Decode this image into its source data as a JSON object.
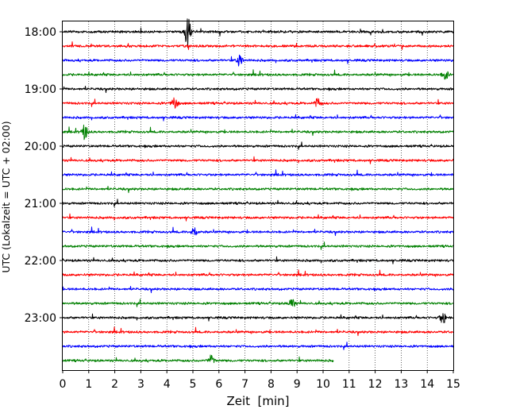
{
  "chart_data": {
    "type": "line",
    "title": "",
    "xlabel": "Zeit  [min]",
    "ylabel": "UTC (Lokalzeit = UTC + 02:00)",
    "xlim": [
      0,
      15
    ],
    "x_ticks": [
      "0",
      "1",
      "2",
      "3",
      "4",
      "5",
      "6",
      "7",
      "8",
      "9",
      "10",
      "11",
      "12",
      "13",
      "14",
      "15"
    ],
    "y_ticks": [
      "18:00",
      "19:00",
      "20:00",
      "21:00",
      "22:00",
      "23:00"
    ],
    "grid": "vertical dotted lines at each minute",
    "row_interval_minutes": 15,
    "rows": [
      {
        "start": "18:00",
        "color": "#000000",
        "end_min": 15,
        "events": [
          {
            "t": 4.8,
            "amp": 1.0
          }
        ]
      },
      {
        "start": "18:15",
        "color": "#ff0000",
        "end_min": 15,
        "events": []
      },
      {
        "start": "18:30",
        "color": "#0000ff",
        "end_min": 15,
        "events": [
          {
            "t": 6.8,
            "amp": 0.35
          }
        ]
      },
      {
        "start": "18:45",
        "color": "#008000",
        "end_min": 15,
        "events": [
          {
            "t": 14.7,
            "amp": 0.3
          }
        ]
      },
      {
        "start": "19:00",
        "color": "#000000",
        "end_min": 15,
        "events": []
      },
      {
        "start": "19:15",
        "color": "#ff0000",
        "end_min": 15,
        "events": [
          {
            "t": 4.3,
            "amp": 0.4
          },
          {
            "t": 9.8,
            "amp": 0.3
          }
        ]
      },
      {
        "start": "19:30",
        "color": "#0000ff",
        "end_min": 15,
        "events": []
      },
      {
        "start": "19:45",
        "color": "#008000",
        "end_min": 15,
        "events": [
          {
            "t": 0.85,
            "amp": 0.45
          }
        ]
      },
      {
        "start": "20:00",
        "color": "#000000",
        "end_min": 15,
        "events": []
      },
      {
        "start": "20:15",
        "color": "#ff0000",
        "end_min": 15,
        "events": []
      },
      {
        "start": "20:30",
        "color": "#0000ff",
        "end_min": 15,
        "events": []
      },
      {
        "start": "20:45",
        "color": "#008000",
        "end_min": 15,
        "events": []
      },
      {
        "start": "21:00",
        "color": "#000000",
        "end_min": 15,
        "events": []
      },
      {
        "start": "21:15",
        "color": "#ff0000",
        "end_min": 15,
        "events": []
      },
      {
        "start": "21:30",
        "color": "#0000ff",
        "end_min": 15,
        "events": [
          {
            "t": 5.05,
            "amp": 0.3
          }
        ]
      },
      {
        "start": "21:45",
        "color": "#008000",
        "end_min": 15,
        "events": []
      },
      {
        "start": "22:00",
        "color": "#000000",
        "end_min": 15,
        "events": []
      },
      {
        "start": "22:15",
        "color": "#ff0000",
        "end_min": 15,
        "events": []
      },
      {
        "start": "22:30",
        "color": "#0000ff",
        "end_min": 15,
        "events": []
      },
      {
        "start": "22:45",
        "color": "#008000",
        "end_min": 15,
        "events": [
          {
            "t": 8.8,
            "amp": 0.3
          }
        ]
      },
      {
        "start": "23:00",
        "color": "#000000",
        "end_min": 15,
        "events": [
          {
            "t": 14.6,
            "amp": 0.35
          }
        ]
      },
      {
        "start": "23:15",
        "color": "#ff0000",
        "end_min": 15,
        "events": []
      },
      {
        "start": "23:30",
        "color": "#0000ff",
        "end_min": 15,
        "events": []
      },
      {
        "start": "23:45",
        "color": "#008000",
        "end_min": 10.4,
        "events": [
          {
            "t": 5.7,
            "amp": 0.3
          }
        ]
      }
    ]
  }
}
